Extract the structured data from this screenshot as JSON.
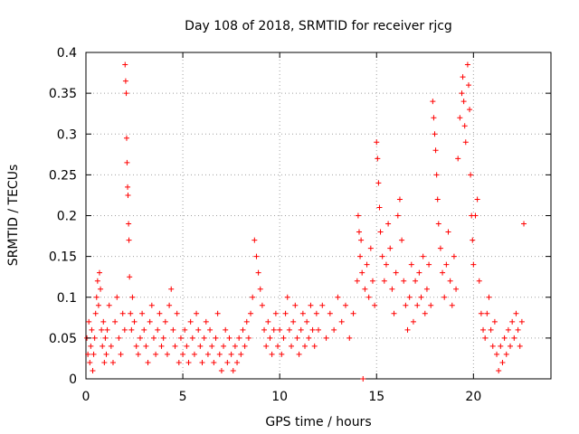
{
  "chart_data": {
    "type": "scatter",
    "title": "Day 108 of 2018, SRMTID for receiver rjcg",
    "xlabel": "GPS time / hours",
    "ylabel": "SRMTID / TECUs",
    "xlim": [
      0,
      24
    ],
    "ylim": [
      0,
      0.4
    ],
    "xticks": [
      0,
      5,
      10,
      15,
      20
    ],
    "xtick_labels": [
      "0",
      "5",
      "10",
      "15",
      "20"
    ],
    "yticks": [
      0,
      0.05,
      0.1,
      0.15,
      0.2,
      0.25,
      0.3,
      0.35,
      0.4
    ],
    "ytick_labels": [
      "0",
      "0.05",
      "0.1",
      "0.15",
      "0.2",
      "0.25",
      "0.3",
      "0.35",
      "0.4"
    ],
    "grid": true,
    "marker": "+",
    "marker_color": "#ff0000",
    "series": [
      {
        "name": "SRMTID",
        "points": [
          [
            0.05,
            0.05
          ],
          [
            0.1,
            0.03
          ],
          [
            0.15,
            0.07
          ],
          [
            0.2,
            0.02
          ],
          [
            0.25,
            0.04
          ],
          [
            0.3,
            0.06
          ],
          [
            0.35,
            0.01
          ],
          [
            0.4,
            0.03
          ],
          [
            0.45,
            0.05
          ],
          [
            0.5,
            0.08
          ],
          [
            0.55,
            0.1
          ],
          [
            0.6,
            0.12
          ],
          [
            0.65,
            0.09
          ],
          [
            0.7,
            0.13
          ],
          [
            0.75,
            0.11
          ],
          [
            0.8,
            0.06
          ],
          [
            0.85,
            0.04
          ],
          [
            0.9,
            0.07
          ],
          [
            0.95,
            0.02
          ],
          [
            1.0,
            0.05
          ],
          [
            1.05,
            0.03
          ],
          [
            1.1,
            0.06
          ],
          [
            1.2,
            0.09
          ],
          [
            1.3,
            0.04
          ],
          [
            1.4,
            0.02
          ],
          [
            1.5,
            0.07
          ],
          [
            1.6,
            0.1
          ],
          [
            1.7,
            0.05
          ],
          [
            1.8,
            0.03
          ],
          [
            1.9,
            0.08
          ],
          [
            2.0,
            0.06
          ],
          [
            2.02,
            0.385
          ],
          [
            2.05,
            0.365
          ],
          [
            2.08,
            0.35
          ],
          [
            2.1,
            0.295
          ],
          [
            2.12,
            0.265
          ],
          [
            2.15,
            0.235
          ],
          [
            2.17,
            0.225
          ],
          [
            2.2,
            0.19
          ],
          [
            2.22,
            0.17
          ],
          [
            2.25,
            0.125
          ],
          [
            2.3,
            0.08
          ],
          [
            2.35,
            0.06
          ],
          [
            2.4,
            0.1
          ],
          [
            2.5,
            0.07
          ],
          [
            2.6,
            0.04
          ],
          [
            2.7,
            0.03
          ],
          [
            2.8,
            0.05
          ],
          [
            2.9,
            0.08
          ],
          [
            3.0,
            0.06
          ],
          [
            3.1,
            0.04
          ],
          [
            3.2,
            0.02
          ],
          [
            3.3,
            0.07
          ],
          [
            3.4,
            0.09
          ],
          [
            3.5,
            0.05
          ],
          [
            3.6,
            0.03
          ],
          [
            3.7,
            0.06
          ],
          [
            3.8,
            0.08
          ],
          [
            3.9,
            0.04
          ],
          [
            4.0,
            0.05
          ],
          [
            4.1,
            0.07
          ],
          [
            4.2,
            0.03
          ],
          [
            4.3,
            0.09
          ],
          [
            4.4,
            0.11
          ],
          [
            4.5,
            0.06
          ],
          [
            4.6,
            0.04
          ],
          [
            4.7,
            0.08
          ],
          [
            4.8,
            0.02
          ],
          [
            4.9,
            0.05
          ],
          [
            5.0,
            0.03
          ],
          [
            5.1,
            0.06
          ],
          [
            5.2,
            0.04
          ],
          [
            5.3,
            0.02
          ],
          [
            5.4,
            0.07
          ],
          [
            5.5,
            0.05
          ],
          [
            5.6,
            0.03
          ],
          [
            5.7,
            0.08
          ],
          [
            5.8,
            0.06
          ],
          [
            5.9,
            0.04
          ],
          [
            6.0,
            0.02
          ],
          [
            6.1,
            0.05
          ],
          [
            6.2,
            0.07
          ],
          [
            6.3,
            0.03
          ],
          [
            6.4,
            0.06
          ],
          [
            6.5,
            0.04
          ],
          [
            6.6,
            0.02
          ],
          [
            6.7,
            0.05
          ],
          [
            6.8,
            0.08
          ],
          [
            6.9,
            0.03
          ],
          [
            7.0,
            0.01
          ],
          [
            7.1,
            0.04
          ],
          [
            7.2,
            0.06
          ],
          [
            7.3,
            0.02
          ],
          [
            7.4,
            0.05
          ],
          [
            7.5,
            0.03
          ],
          [
            7.6,
            0.01
          ],
          [
            7.7,
            0.04
          ],
          [
            7.8,
            0.02
          ],
          [
            7.9,
            0.05
          ],
          [
            8.0,
            0.03
          ],
          [
            8.1,
            0.06
          ],
          [
            8.2,
            0.04
          ],
          [
            8.3,
            0.07
          ],
          [
            8.4,
            0.05
          ],
          [
            8.5,
            0.08
          ],
          [
            8.6,
            0.1
          ],
          [
            8.7,
            0.17
          ],
          [
            8.8,
            0.15
          ],
          [
            8.9,
            0.13
          ],
          [
            9.0,
            0.11
          ],
          [
            9.1,
            0.09
          ],
          [
            9.2,
            0.06
          ],
          [
            9.3,
            0.04
          ],
          [
            9.4,
            0.07
          ],
          [
            9.5,
            0.05
          ],
          [
            9.6,
            0.03
          ],
          [
            9.7,
            0.06
          ],
          [
            9.8,
            0.08
          ],
          [
            9.9,
            0.04
          ],
          [
            10.0,
            0.06
          ],
          [
            10.1,
            0.03
          ],
          [
            10.2,
            0.05
          ],
          [
            10.3,
            0.08
          ],
          [
            10.4,
            0.1
          ],
          [
            10.5,
            0.06
          ],
          [
            10.6,
            0.04
          ],
          [
            10.7,
            0.07
          ],
          [
            10.8,
            0.09
          ],
          [
            10.9,
            0.05
          ],
          [
            11.0,
            0.03
          ],
          [
            11.1,
            0.06
          ],
          [
            11.2,
            0.08
          ],
          [
            11.3,
            0.04
          ],
          [
            11.4,
            0.07
          ],
          [
            11.5,
            0.05
          ],
          [
            11.6,
            0.09
          ],
          [
            11.7,
            0.06
          ],
          [
            11.8,
            0.04
          ],
          [
            11.9,
            0.08
          ],
          [
            12.0,
            0.06
          ],
          [
            12.2,
            0.09
          ],
          [
            12.4,
            0.05
          ],
          [
            12.6,
            0.08
          ],
          [
            12.8,
            0.06
          ],
          [
            13.0,
            0.1
          ],
          [
            13.2,
            0.07
          ],
          [
            13.4,
            0.09
          ],
          [
            13.6,
            0.05
          ],
          [
            13.8,
            0.08
          ],
          [
            14.0,
            0.12
          ],
          [
            14.05,
            0.2
          ],
          [
            14.1,
            0.18
          ],
          [
            14.15,
            0.15
          ],
          [
            14.2,
            0.17
          ],
          [
            14.25,
            0.13
          ],
          [
            14.3,
            0.0
          ],
          [
            14.4,
            0.11
          ],
          [
            14.5,
            0.14
          ],
          [
            14.6,
            0.1
          ],
          [
            14.7,
            0.16
          ],
          [
            14.8,
            0.12
          ],
          [
            14.9,
            0.09
          ],
          [
            15.0,
            0.29
          ],
          [
            15.05,
            0.27
          ],
          [
            15.1,
            0.24
          ],
          [
            15.15,
            0.21
          ],
          [
            15.2,
            0.18
          ],
          [
            15.3,
            0.15
          ],
          [
            15.4,
            0.12
          ],
          [
            15.5,
            0.14
          ],
          [
            15.6,
            0.19
          ],
          [
            15.7,
            0.16
          ],
          [
            15.8,
            0.11
          ],
          [
            15.9,
            0.08
          ],
          [
            16.0,
            0.13
          ],
          [
            16.1,
            0.2
          ],
          [
            16.2,
            0.22
          ],
          [
            16.3,
            0.17
          ],
          [
            16.4,
            0.12
          ],
          [
            16.5,
            0.09
          ],
          [
            16.6,
            0.06
          ],
          [
            16.7,
            0.1
          ],
          [
            16.8,
            0.14
          ],
          [
            16.9,
            0.07
          ],
          [
            17.0,
            0.12
          ],
          [
            17.1,
            0.09
          ],
          [
            17.2,
            0.13
          ],
          [
            17.3,
            0.1
          ],
          [
            17.4,
            0.15
          ],
          [
            17.5,
            0.08
          ],
          [
            17.6,
            0.11
          ],
          [
            17.7,
            0.14
          ],
          [
            17.8,
            0.09
          ],
          [
            17.9,
            0.34
          ],
          [
            17.95,
            0.32
          ],
          [
            18.0,
            0.3
          ],
          [
            18.05,
            0.28
          ],
          [
            18.1,
            0.25
          ],
          [
            18.15,
            0.22
          ],
          [
            18.2,
            0.19
          ],
          [
            18.3,
            0.16
          ],
          [
            18.4,
            0.13
          ],
          [
            18.5,
            0.1
          ],
          [
            18.6,
            0.14
          ],
          [
            18.7,
            0.18
          ],
          [
            18.8,
            0.12
          ],
          [
            18.9,
            0.09
          ],
          [
            19.0,
            0.15
          ],
          [
            19.1,
            0.11
          ],
          [
            19.2,
            0.27
          ],
          [
            19.3,
            0.32
          ],
          [
            19.4,
            0.35
          ],
          [
            19.45,
            0.37
          ],
          [
            19.5,
            0.34
          ],
          [
            19.55,
            0.31
          ],
          [
            19.6,
            0.29
          ],
          [
            19.7,
            0.385
          ],
          [
            19.75,
            0.36
          ],
          [
            19.8,
            0.33
          ],
          [
            19.85,
            0.25
          ],
          [
            19.9,
            0.2
          ],
          [
            19.95,
            0.17
          ],
          [
            20.0,
            0.14
          ],
          [
            20.1,
            0.2
          ],
          [
            20.2,
            0.22
          ],
          [
            20.3,
            0.12
          ],
          [
            20.4,
            0.08
          ],
          [
            20.5,
            0.06
          ],
          [
            20.6,
            0.05
          ],
          [
            20.7,
            0.08
          ],
          [
            20.8,
            0.1
          ],
          [
            20.9,
            0.06
          ],
          [
            21.0,
            0.04
          ],
          [
            21.1,
            0.07
          ],
          [
            21.2,
            0.03
          ],
          [
            21.3,
            0.01
          ],
          [
            21.4,
            0.04
          ],
          [
            21.5,
            0.02
          ],
          [
            21.6,
            0.05
          ],
          [
            21.7,
            0.03
          ],
          [
            21.8,
            0.06
          ],
          [
            21.9,
            0.04
          ],
          [
            22.0,
            0.07
          ],
          [
            22.1,
            0.05
          ],
          [
            22.2,
            0.08
          ],
          [
            22.3,
            0.06
          ],
          [
            22.4,
            0.04
          ],
          [
            22.5,
            0.07
          ],
          [
            22.6,
            0.19
          ]
        ]
      }
    ]
  }
}
